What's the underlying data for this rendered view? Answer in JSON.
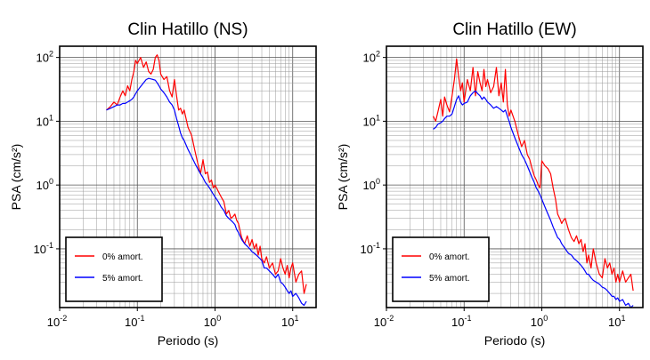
{
  "chart_data": [
    {
      "type": "line",
      "title": "Clin Hatillo (NS)",
      "xlabel": "Periodo (s)",
      "ylabel": "PSA (cm/s²)",
      "xscale": "log",
      "yscale": "log",
      "xlim": [
        0.01,
        20
      ],
      "ylim": [
        0.012,
        150
      ],
      "grid": true,
      "legend_position": "bottom-left",
      "x_ticks": [
        {
          "value": 0.01,
          "base": "10",
          "exp": "-2"
        },
        {
          "value": 0.1,
          "base": "10",
          "exp": "-1"
        },
        {
          "value": 1,
          "base": "10",
          "exp": "0"
        },
        {
          "value": 10,
          "base": "10",
          "exp": "1"
        }
      ],
      "y_ticks": [
        {
          "value": 0.1,
          "base": "10",
          "exp": "-1"
        },
        {
          "value": 1,
          "base": "10",
          "exp": "0"
        },
        {
          "value": 10,
          "base": "10",
          "exp": "1"
        },
        {
          "value": 100,
          "base": "10",
          "exp": "2"
        }
      ],
      "series": [
        {
          "name": "0% amort.",
          "color": "#ff0000",
          "x": [
            0.04,
            0.045,
            0.05,
            0.055,
            0.06,
            0.065,
            0.07,
            0.075,
            0.08,
            0.085,
            0.09,
            0.095,
            0.1,
            0.11,
            0.12,
            0.13,
            0.14,
            0.15,
            0.16,
            0.17,
            0.18,
            0.19,
            0.2,
            0.22,
            0.24,
            0.26,
            0.28,
            0.3,
            0.32,
            0.34,
            0.36,
            0.38,
            0.4,
            0.45,
            0.5,
            0.55,
            0.6,
            0.65,
            0.7,
            0.75,
            0.8,
            0.85,
            0.9,
            0.95,
            1.0,
            1.1,
            1.2,
            1.3,
            1.4,
            1.5,
            1.6,
            1.7,
            1.8,
            1.9,
            2.0,
            2.2,
            2.4,
            2.6,
            2.8,
            3.0,
            3.2,
            3.4,
            3.6,
            3.8,
            4.0,
            4.3,
            4.6,
            5.0,
            5.5,
            6.0,
            6.5,
            7.0,
            7.5,
            8.0,
            8.5,
            9.0,
            9.5,
            10,
            11,
            12,
            13,
            14,
            15
          ],
          "y": [
            15,
            17,
            20,
            18,
            24,
            30,
            25,
            36,
            30,
            45,
            60,
            90,
            80,
            100,
            70,
            85,
            60,
            55,
            65,
            100,
            110,
            90,
            55,
            45,
            50,
            30,
            24,
            45,
            25,
            15,
            16,
            13,
            15,
            8,
            6,
            3.5,
            2.2,
            1.5,
            2.5,
            1.5,
            1.6,
            1.1,
            1.2,
            0.9,
            1.0,
            0.8,
            0.65,
            0.55,
            0.35,
            0.4,
            0.3,
            0.32,
            0.35,
            0.28,
            0.25,
            0.15,
            0.12,
            0.16,
            0.11,
            0.14,
            0.1,
            0.12,
            0.08,
            0.11,
            0.07,
            0.06,
            0.075,
            0.05,
            0.06,
            0.04,
            0.045,
            0.07,
            0.05,
            0.04,
            0.055,
            0.035,
            0.05,
            0.06,
            0.03,
            0.04,
            0.045,
            0.02,
            0.028
          ]
        },
        {
          "name": "5% amort.",
          "color": "#0000ff",
          "x": [
            0.04,
            0.045,
            0.05,
            0.055,
            0.06,
            0.065,
            0.07,
            0.075,
            0.08,
            0.085,
            0.09,
            0.095,
            0.1,
            0.11,
            0.12,
            0.13,
            0.14,
            0.15,
            0.16,
            0.17,
            0.18,
            0.19,
            0.2,
            0.22,
            0.24,
            0.26,
            0.28,
            0.3,
            0.32,
            0.34,
            0.36,
            0.38,
            0.4,
            0.45,
            0.5,
            0.55,
            0.6,
            0.65,
            0.7,
            0.75,
            0.8,
            0.85,
            0.9,
            0.95,
            1.0,
            1.1,
            1.2,
            1.3,
            1.4,
            1.5,
            1.6,
            1.7,
            1.8,
            1.9,
            2.0,
            2.2,
            2.4,
            2.6,
            2.8,
            3.0,
            3.2,
            3.4,
            3.6,
            3.8,
            4.0,
            4.3,
            4.6,
            5.0,
            5.5,
            6.0,
            6.5,
            7.0,
            7.5,
            8.0,
            8.5,
            9.0,
            9.5,
            10,
            11,
            12,
            13,
            14,
            15
          ],
          "y": [
            15,
            16,
            17,
            18,
            18,
            19,
            19,
            20,
            21,
            22,
            24,
            27,
            30,
            35,
            40,
            45,
            47,
            46,
            45,
            44,
            40,
            36,
            32,
            28,
            24,
            20,
            18,
            15,
            11,
            8.5,
            6.5,
            5.5,
            5,
            3.6,
            2.8,
            2.2,
            1.8,
            1.5,
            1.3,
            1.1,
            1.0,
            0.9,
            0.8,
            0.72,
            0.65,
            0.55,
            0.45,
            0.4,
            0.33,
            0.3,
            0.28,
            0.26,
            0.24,
            0.2,
            0.18,
            0.14,
            0.12,
            0.11,
            0.1,
            0.09,
            0.085,
            0.08,
            0.075,
            0.07,
            0.065,
            0.05,
            0.05,
            0.045,
            0.04,
            0.035,
            0.04,
            0.03,
            0.028,
            0.025,
            0.022,
            0.02,
            0.022,
            0.018,
            0.02,
            0.017,
            0.014,
            0.013,
            0.015
          ]
        }
      ]
    },
    {
      "type": "line",
      "title": "Clin Hatillo (EW)",
      "xlabel": "Periodo (s)",
      "ylabel": "PSA (cm/s²)",
      "xscale": "log",
      "yscale": "log",
      "xlim": [
        0.01,
        20
      ],
      "ylim": [
        0.012,
        150
      ],
      "grid": true,
      "legend_position": "bottom-left",
      "x_ticks": [
        {
          "value": 0.01,
          "base": "10",
          "exp": "-2"
        },
        {
          "value": 0.1,
          "base": "10",
          "exp": "-1"
        },
        {
          "value": 1,
          "base": "10",
          "exp": "0"
        },
        {
          "value": 10,
          "base": "10",
          "exp": "1"
        }
      ],
      "y_ticks": [
        {
          "value": 0.1,
          "base": "10",
          "exp": "-1"
        },
        {
          "value": 1,
          "base": "10",
          "exp": "0"
        },
        {
          "value": 10,
          "base": "10",
          "exp": "1"
        },
        {
          "value": 100,
          "base": "10",
          "exp": "2"
        }
      ],
      "series": [
        {
          "name": "0% amort.",
          "color": "#ff0000",
          "x": [
            0.04,
            0.043,
            0.046,
            0.05,
            0.053,
            0.056,
            0.06,
            0.065,
            0.07,
            0.075,
            0.08,
            0.085,
            0.09,
            0.095,
            0.1,
            0.11,
            0.12,
            0.13,
            0.14,
            0.15,
            0.16,
            0.17,
            0.18,
            0.19,
            0.2,
            0.22,
            0.24,
            0.26,
            0.28,
            0.3,
            0.32,
            0.34,
            0.36,
            0.38,
            0.4,
            0.45,
            0.5,
            0.55,
            0.6,
            0.65,
            0.7,
            0.75,
            0.8,
            0.85,
            0.9,
            0.95,
            1.0,
            1.1,
            1.2,
            1.3,
            1.4,
            1.5,
            1.6,
            1.7,
            1.8,
            1.9,
            2.0,
            2.2,
            2.4,
            2.6,
            2.8,
            3.0,
            3.2,
            3.4,
            3.6,
            3.8,
            4.0,
            4.3,
            4.6,
            5.0,
            5.5,
            6.0,
            6.5,
            7.0,
            7.5,
            8.0,
            8.5,
            9.0,
            9.5,
            10,
            11,
            12,
            13,
            14,
            15
          ],
          "y": [
            12,
            10,
            14,
            22,
            12,
            24,
            18,
            14,
            25,
            45,
            95,
            50,
            30,
            40,
            20,
            45,
            30,
            70,
            25,
            60,
            40,
            30,
            65,
            35,
            45,
            28,
            35,
            70,
            25,
            40,
            20,
            65,
            18,
            12,
            15,
            10,
            6,
            4,
            5,
            3,
            2.5,
            1.8,
            1.4,
            1.2,
            1.0,
            0.9,
            2.4,
            2.0,
            1.8,
            1.5,
            0.9,
            0.6,
            0.35,
            0.3,
            0.25,
            0.28,
            0.3,
            0.2,
            0.15,
            0.13,
            0.16,
            0.12,
            0.14,
            0.09,
            0.12,
            0.06,
            0.08,
            0.05,
            0.1,
            0.06,
            0.04,
            0.035,
            0.07,
            0.05,
            0.06,
            0.04,
            0.05,
            0.03,
            0.04,
            0.03,
            0.045,
            0.03,
            0.035,
            0.04,
            0.022
          ]
        },
        {
          "name": "5% amort.",
          "color": "#0000ff",
          "x": [
            0.04,
            0.043,
            0.046,
            0.05,
            0.053,
            0.056,
            0.06,
            0.065,
            0.07,
            0.075,
            0.08,
            0.085,
            0.09,
            0.095,
            0.1,
            0.11,
            0.12,
            0.13,
            0.14,
            0.15,
            0.16,
            0.17,
            0.18,
            0.19,
            0.2,
            0.22,
            0.24,
            0.26,
            0.28,
            0.3,
            0.32,
            0.34,
            0.36,
            0.38,
            0.4,
            0.45,
            0.5,
            0.55,
            0.6,
            0.65,
            0.7,
            0.75,
            0.8,
            0.85,
            0.9,
            0.95,
            1.0,
            1.1,
            1.2,
            1.3,
            1.4,
            1.5,
            1.6,
            1.7,
            1.8,
            1.9,
            2.0,
            2.2,
            2.4,
            2.6,
            2.8,
            3.0,
            3.2,
            3.4,
            3.6,
            3.8,
            4.0,
            4.3,
            4.6,
            5.0,
            5.5,
            6.0,
            6.5,
            7.0,
            7.5,
            8.0,
            8.5,
            9.0,
            9.5,
            10,
            11,
            12,
            13,
            14,
            15
          ],
          "y": [
            7.5,
            8,
            9,
            9.5,
            10,
            11,
            12,
            12,
            13,
            17,
            22,
            25,
            20,
            18,
            19,
            20,
            25,
            28,
            30,
            27,
            25,
            22,
            24,
            22,
            20,
            18,
            16,
            17,
            16,
            15,
            14,
            15,
            12,
            10,
            8,
            5.5,
            4,
            3,
            2.5,
            2.0,
            1.6,
            1.3,
            1.1,
            0.9,
            0.8,
            0.7,
            0.6,
            0.45,
            0.35,
            0.28,
            0.22,
            0.18,
            0.15,
            0.14,
            0.12,
            0.11,
            0.1,
            0.085,
            0.08,
            0.07,
            0.065,
            0.06,
            0.055,
            0.05,
            0.045,
            0.04,
            0.04,
            0.035,
            0.032,
            0.03,
            0.028,
            0.025,
            0.024,
            0.022,
            0.02,
            0.018,
            0.018,
            0.016,
            0.017,
            0.015,
            0.016,
            0.013,
            0.014,
            0.012,
            0.013
          ]
        }
      ]
    }
  ]
}
